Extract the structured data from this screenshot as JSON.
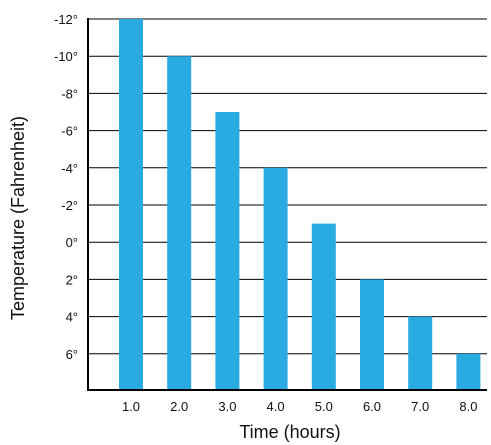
{
  "chart_data": {
    "type": "bar",
    "title": "",
    "xlabel": "Time (hours)",
    "ylabel": "Temperature (Fahrenheit)",
    "categories": [
      "1.0",
      "2.0",
      "3.0",
      "4.0",
      "5.0",
      "6.0",
      "7.0",
      "8.0"
    ],
    "values": [
      -12,
      -10,
      -7,
      -4,
      -1,
      2,
      4,
      6
    ],
    "y_ticks": [
      "-12°",
      "-10°",
      "-8°",
      "-6°",
      "-4°",
      "-2°",
      "0°",
      "2°",
      "4°",
      "6°"
    ],
    "y_tick_values": [
      -12,
      -10,
      -8,
      -6,
      -4,
      -2,
      0,
      2,
      4,
      6
    ],
    "axis_orientation": "inverted (negative at top)",
    "grid": "horizontal lines",
    "bar_color": "#29ABE2",
    "grid_color": "#000000"
  }
}
